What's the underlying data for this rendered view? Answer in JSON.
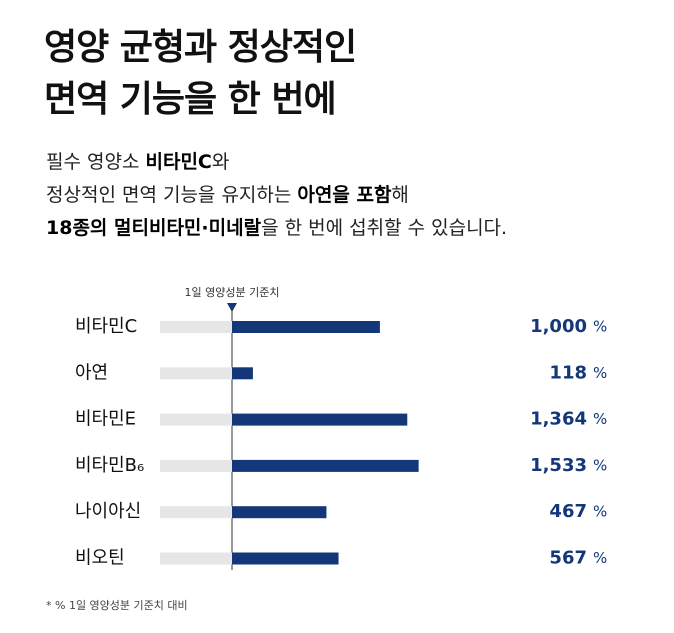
{
  "chart_data": {
    "type": "bar",
    "title": [
      "영양 균형과 정상적인",
      "면역 기능을 한 번에"
    ],
    "description": [
      [
        {
          "text": "필수 영양소 ",
          "bold": false
        },
        {
          "text": "비타민C",
          "bold": true
        },
        {
          "text": "와",
          "bold": false
        }
      ],
      [
        {
          "text": "정상적인 면역 기능을 유지하는 ",
          "bold": false
        },
        {
          "text": "아연을 포함",
          "bold": true
        },
        {
          "text": "해",
          "bold": false
        }
      ],
      [
        {
          "text": "18종의 멀티비타민·미네랄",
          "bold": true
        },
        {
          "text": "을 한 번에 섭취할 수 있습니다.",
          "bold": false
        }
      ]
    ],
    "reference": {
      "value": 100,
      "label": "1일 영양성분 기준치"
    },
    "categories": [
      "비타민C",
      "아연",
      "비타민E",
      "비타민B₆",
      "나이아신",
      "비오틴"
    ],
    "values": [
      1000,
      118,
      1364,
      1533,
      467,
      567
    ],
    "value_labels": [
      "1,000",
      "118",
      "1,364",
      "1,533",
      "467",
      "567"
    ],
    "unit": "%",
    "color": "#14377a",
    "track_color": "#e6e6e6",
    "footnote": "* % 1일 영양성분 기준치 대비"
  }
}
